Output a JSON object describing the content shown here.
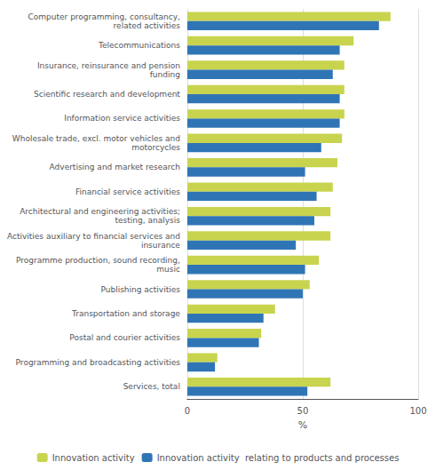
{
  "chart_data": {
    "type": "bar",
    "orientation": "horizontal",
    "categories": [
      "Services, total",
      "Programming and broadcasting activities",
      "Postal and courier activities",
      "Transportation and storage",
      "Publishing activities",
      "Programme production, sound recording,\nmusic",
      "Activities auxiliary to financial services and\ninsurance",
      "Architectural and engineering activities;\ntesting, analysis",
      "Financial service activities",
      "Advertising and market research",
      "Wholesale trade, excl. motor vehicles and\nmotorcycles",
      "Information service activities",
      "Scientific research and development",
      "Insurance, reinsurance and pension\nfunding",
      "Telecommunications",
      "Computer programming, consultancy,\nrelated activities"
    ],
    "series": [
      {
        "name": "Innovation activity",
        "color": "#c8d44e",
        "values": [
          62,
          13,
          32,
          38,
          53,
          57,
          62,
          62,
          63,
          65,
          67,
          68,
          68,
          68,
          72,
          88
        ]
      },
      {
        "name": "Innovation activity  relating to products and processes",
        "color": "#2f75b6",
        "values": [
          52,
          12,
          31,
          33,
          50,
          51,
          47,
          55,
          56,
          51,
          58,
          66,
          66,
          63,
          66,
          83
        ]
      }
    ],
    "xlabel": "%",
    "xlim": [
      0,
      100
    ],
    "xticks": [
      0,
      50,
      100
    ],
    "grid": true,
    "legend": "bottom"
  }
}
